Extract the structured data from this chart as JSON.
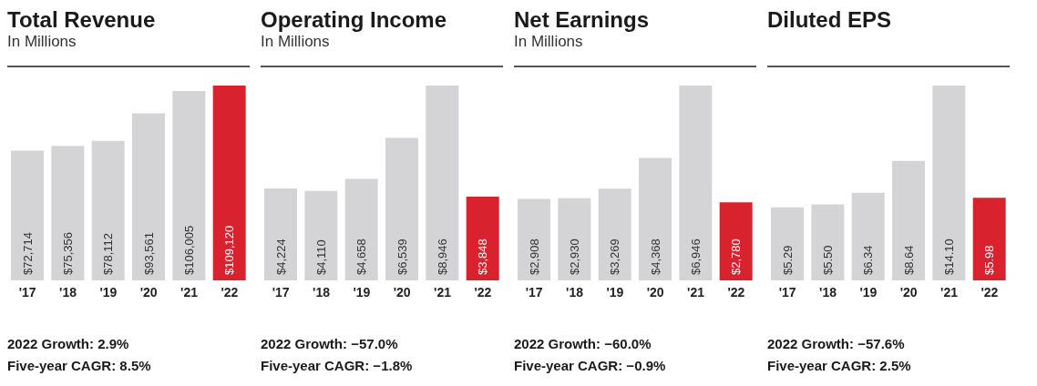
{
  "chart_data": [
    {
      "type": "bar",
      "title": "Total Revenue",
      "subtitle": "In Millions",
      "categories": [
        "'17",
        "'18",
        "'19",
        "'20",
        "'21",
        "'22"
      ],
      "values": [
        72714,
        75356,
        78112,
        93561,
        106005,
        109120
      ],
      "value_labels": [
        "$72,714",
        "$75,356",
        "$78,112",
        "$93,561",
        "$106,005",
        "$109,120"
      ],
      "colors": [
        "#d4d4d6",
        "#d4d4d6",
        "#d4d4d6",
        "#d4d4d6",
        "#d4d4d6",
        "#d8232f"
      ],
      "annotations": [
        "2022 Growth: 2.9%",
        "Five-year CAGR: 8.5%"
      ]
    },
    {
      "type": "bar",
      "title": "Operating Income",
      "subtitle": "In Millions",
      "categories": [
        "'17",
        "'18",
        "'19",
        "'20",
        "'21",
        "'22"
      ],
      "values": [
        4224,
        4110,
        4658,
        6539,
        8946,
        3848
      ],
      "value_labels": [
        "$4,224",
        "$4,110",
        "$4,658",
        "$6,539",
        "$8,946",
        "$3,848"
      ],
      "colors": [
        "#d4d4d6",
        "#d4d4d6",
        "#d4d4d6",
        "#d4d4d6",
        "#d4d4d6",
        "#d8232f"
      ],
      "annotations": [
        "2022 Growth: −57.0%",
        "Five-year CAGR: −1.8%"
      ]
    },
    {
      "type": "bar",
      "title": "Net Earnings",
      "subtitle": "In Millions",
      "categories": [
        "'17",
        "'18",
        "'19",
        "'20",
        "'21",
        "'22"
      ],
      "values": [
        2908,
        2930,
        3269,
        4368,
        6946,
        2780
      ],
      "value_labels": [
        "$2,908",
        "$2,930",
        "$3,269",
        "$4,368",
        "$6,946",
        "$2,780"
      ],
      "colors": [
        "#d4d4d6",
        "#d4d4d6",
        "#d4d4d6",
        "#d4d4d6",
        "#d4d4d6",
        "#d8232f"
      ],
      "annotations": [
        "2022 Growth: −60.0%",
        "Five-year CAGR: −0.9%"
      ]
    },
    {
      "type": "bar",
      "title": "Diluted EPS",
      "categories": [
        "'17",
        "'18",
        "'19",
        "'20",
        "'21",
        "'22"
      ],
      "values": [
        5.29,
        5.5,
        6.34,
        8.64,
        14.1,
        5.98
      ],
      "value_labels": [
        "$5.29",
        "$5.50",
        "$6.34",
        "$8.64",
        "$14.10",
        "$5.98"
      ],
      "colors": [
        "#d4d4d6",
        "#d4d4d6",
        "#d4d4d6",
        "#d4d4d6",
        "#d4d4d6",
        "#d8232f"
      ],
      "annotations": [
        "2022 Growth: −57.6%",
        "Five-year CAGR: 2.5%"
      ]
    }
  ]
}
